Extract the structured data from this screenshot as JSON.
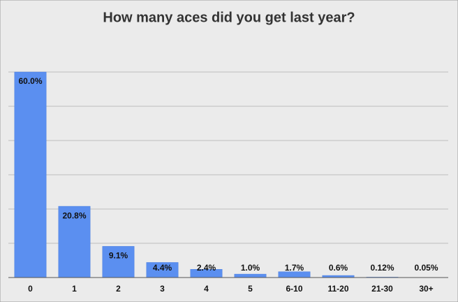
{
  "chart_data": {
    "type": "bar",
    "title": "How many aces did you get last year?",
    "categories": [
      "0",
      "1",
      "2",
      "3",
      "4",
      "5",
      "6-10",
      "11-20",
      "21-30",
      "30+"
    ],
    "values": [
      60,
      20.8,
      9.1,
      4.4,
      2.4,
      1.0,
      1.7,
      0.6,
      0.12,
      0.05
    ],
    "value_labels": [
      "60.0%",
      "20.8%",
      "9.1%",
      "4.4%",
      "2.4%",
      "1.0%",
      "1.7%",
      "0.6%",
      "0.12%",
      "0.05%"
    ],
    "color": "#5b8ff0",
    "ylim": [
      0,
      60
    ],
    "yticks": [
      0,
      10,
      20,
      30,
      40,
      50,
      60
    ],
    "grid": true
  }
}
